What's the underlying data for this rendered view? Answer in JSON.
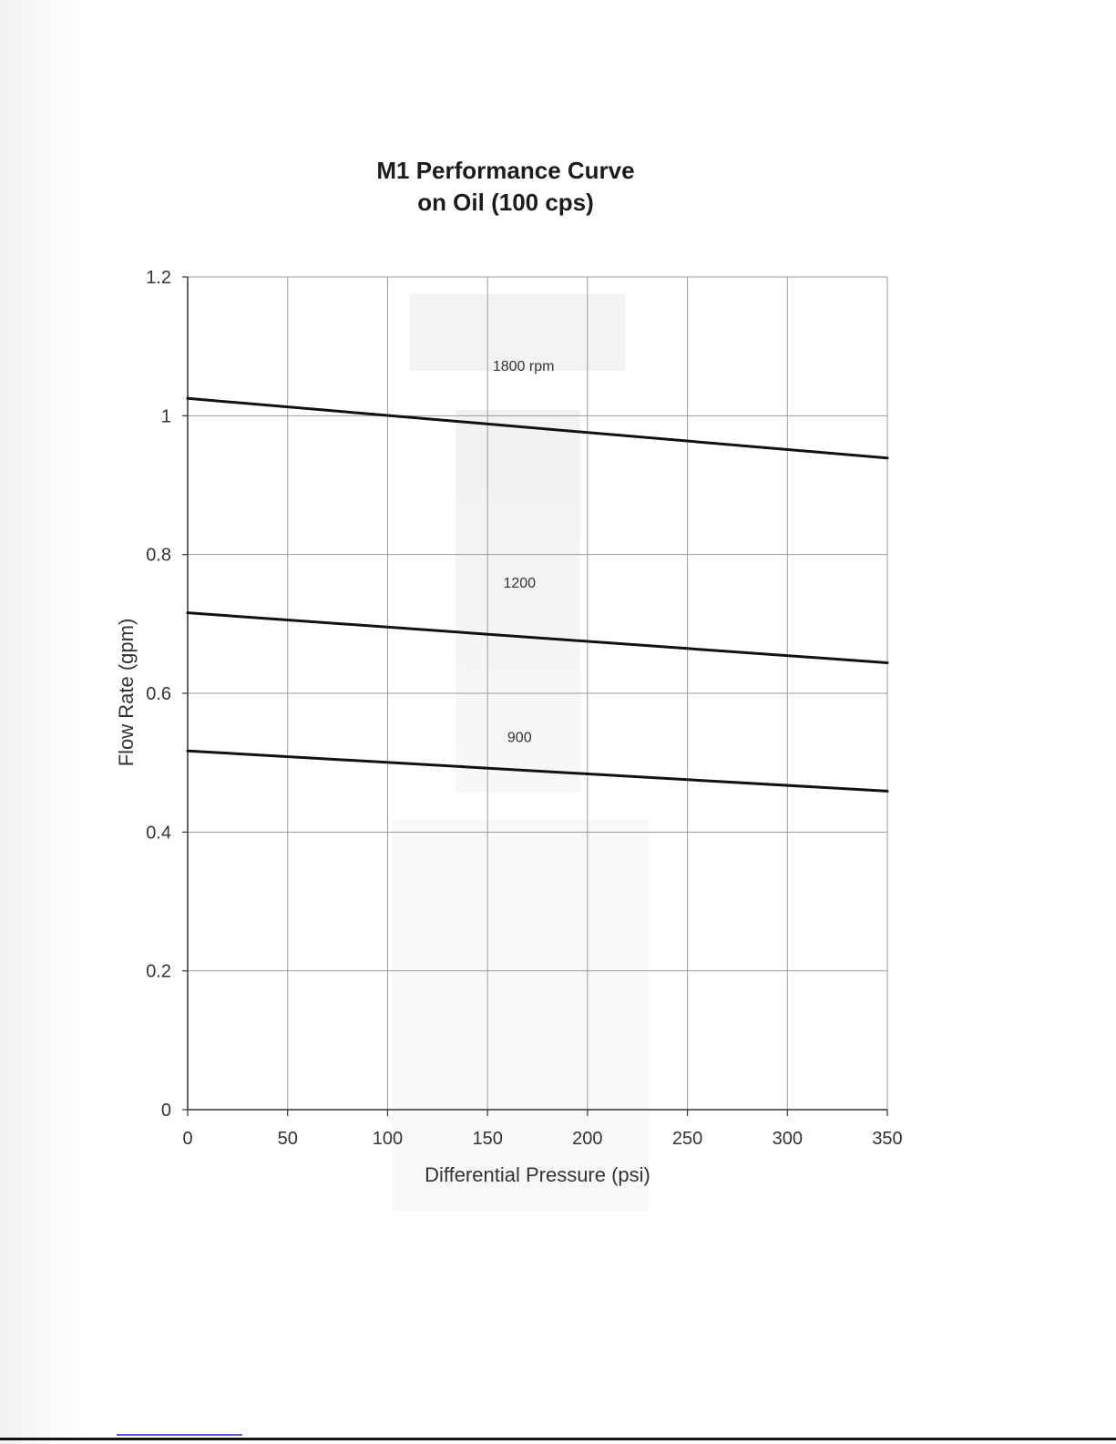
{
  "chart_data": {
    "type": "line",
    "title": "M1 Performance Curve",
    "subtitle": "on Oil (100 cps)",
    "xlabel": "Differential Pressure (psi)",
    "ylabel": "Flow Rate (gpm)",
    "xlim": [
      0,
      350
    ],
    "ylim": [
      0,
      1.2
    ],
    "xticks": [
      0,
      50,
      100,
      150,
      200,
      250,
      300,
      350
    ],
    "yticks": [
      0,
      0.2,
      0.4,
      0.6,
      0.8,
      1,
      1.2
    ],
    "xtick_labels": [
      "0",
      "50",
      "100",
      "150",
      "200",
      "250",
      "300",
      "350"
    ],
    "ytick_labels": [
      "0",
      "0.2",
      "0.4",
      "0.6",
      "0.8",
      "1",
      "1.2"
    ],
    "grid": true,
    "legend": "none",
    "series": [
      {
        "name": "1800 rpm",
        "label_at": [
          168,
          1.065
        ],
        "x": [
          0,
          350
        ],
        "values": [
          1.025,
          0.939
        ],
        "color": "#111111"
      },
      {
        "name": "1200",
        "label_at": [
          166,
          0.752
        ],
        "x": [
          0,
          350
        ],
        "values": [
          0.716,
          0.644
        ],
        "color": "#111111"
      },
      {
        "name": "900",
        "label_at": [
          166,
          0.53
        ],
        "x": [
          0,
          350
        ],
        "values": [
          0.517,
          0.459
        ],
        "color": "#111111"
      }
    ]
  }
}
